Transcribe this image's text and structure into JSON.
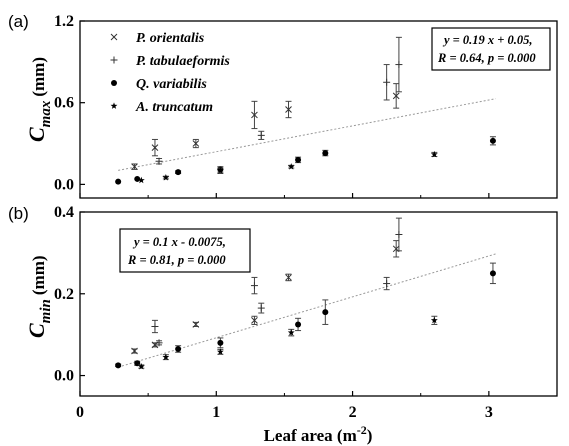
{
  "chart_data": [
    {
      "panel_label": "(a)",
      "type": "scatter",
      "ylabel": "C",
      "ylabel_sub": "max",
      "ylabel_unit": "(mm)",
      "ylim": [
        -0.1,
        1.2
      ],
      "yticks": [
        0.0,
        0.6,
        1.2
      ],
      "ytick_labels": [
        "0.0",
        "0.6",
        "1.2"
      ],
      "legend": [
        "P. orientalis",
        "P. tabulaeformis",
        "Q. variabilis",
        "A. truncatum"
      ],
      "equation_lines": [
        "y = 0.19 x + 0.05,",
        "R = 0.64, p = 0.000"
      ],
      "fit": {
        "slope": 0.19,
        "intercept": 0.05,
        "x_range": [
          0.28,
          3.05
        ]
      },
      "series": [
        {
          "name": "P. orientalis",
          "marker": "x",
          "points": [
            {
              "x": 0.4,
              "y": 0.13,
              "err": 0.02
            },
            {
              "x": 0.55,
              "y": 0.27,
              "err": 0.06
            },
            {
              "x": 0.85,
              "y": 0.3,
              "err": 0.03
            },
            {
              "x": 1.28,
              "y": 0.51,
              "err": 0.1
            },
            {
              "x": 1.53,
              "y": 0.55,
              "err": 0.06
            },
            {
              "x": 2.32,
              "y": 0.65,
              "err": 0.09
            }
          ]
        },
        {
          "name": "P. tabulaeformis",
          "marker": "+",
          "points": [
            {
              "x": 0.58,
              "y": 0.17,
              "err": 0.02
            },
            {
              "x": 1.33,
              "y": 0.36,
              "err": 0.03
            },
            {
              "x": 2.25,
              "y": 0.75,
              "err": 0.13
            },
            {
              "x": 2.34,
              "y": 0.88,
              "err": 0.2
            }
          ]
        },
        {
          "name": "Q. variabilis",
          "marker": "dot",
          "points": [
            {
              "x": 0.28,
              "y": 0.02,
              "err": 0.0
            },
            {
              "x": 0.42,
              "y": 0.04,
              "err": 0.0
            },
            {
              "x": 0.72,
              "y": 0.09,
              "err": 0.01
            },
            {
              "x": 1.03,
              "y": 0.11,
              "err": 0.02
            },
            {
              "x": 1.6,
              "y": 0.18,
              "err": 0.02
            },
            {
              "x": 1.8,
              "y": 0.23,
              "err": 0.02
            },
            {
              "x": 3.03,
              "y": 0.32,
              "err": 0.03
            }
          ]
        },
        {
          "name": "A. truncatum",
          "marker": "star",
          "points": [
            {
              "x": 0.45,
              "y": 0.03,
              "err": 0.0
            },
            {
              "x": 0.63,
              "y": 0.05,
              "err": 0.01
            },
            {
              "x": 1.03,
              "y": 0.1,
              "err": 0.02
            },
            {
              "x": 1.55,
              "y": 0.13,
              "err": 0.01
            },
            {
              "x": 2.6,
              "y": 0.22,
              "err": 0.015
            }
          ]
        }
      ]
    },
    {
      "panel_label": "(b)",
      "type": "scatter",
      "ylabel": "C",
      "ylabel_sub": "min",
      "ylabel_unit": "(mm)",
      "xlabel": "Leaf area (m",
      "xlabel_sup": "-2",
      "xlabel_end": ")",
      "xlim": [
        0,
        3.5
      ],
      "xticks": [
        0,
        1,
        2,
        3
      ],
      "xtick_labels": [
        "0",
        "1",
        "2",
        "3"
      ],
      "ylim": [
        -0.05,
        0.4
      ],
      "yticks": [
        0.0,
        0.2,
        0.4
      ],
      "ytick_labels": [
        "0.0",
        "0.2",
        "0.4"
      ],
      "equation_lines": [
        "y = 0.1 x - 0.0075,",
        "R = 0.81, p = 0.000"
      ],
      "fit": {
        "slope": 0.1,
        "intercept": -0.0075,
        "x_range": [
          0.28,
          3.05
        ]
      },
      "series": [
        {
          "name": "P. orientalis",
          "marker": "x",
          "points": [
            {
              "x": 0.4,
              "y": 0.06,
              "err": 0.005
            },
            {
              "x": 0.55,
              "y": 0.075,
              "err": 0.005
            },
            {
              "x": 0.85,
              "y": 0.125,
              "err": 0.005
            },
            {
              "x": 1.28,
              "y": 0.135,
              "err": 0.01
            },
            {
              "x": 1.53,
              "y": 0.24,
              "err": 0.008
            },
            {
              "x": 2.32,
              "y": 0.31,
              "err": 0.02
            }
          ]
        },
        {
          "name": "P. tabulaeformis",
          "marker": "+",
          "points": [
            {
              "x": 0.55,
              "y": 0.12,
              "err": 0.015
            },
            {
              "x": 0.58,
              "y": 0.08,
              "err": 0.005
            },
            {
              "x": 1.28,
              "y": 0.22,
              "err": 0.02
            },
            {
              "x": 1.33,
              "y": 0.165,
              "err": 0.012
            },
            {
              "x": 2.25,
              "y": 0.225,
              "err": 0.015
            },
            {
              "x": 2.34,
              "y": 0.345,
              "err": 0.04
            }
          ]
        },
        {
          "name": "Q. variabilis",
          "marker": "dot",
          "points": [
            {
              "x": 0.28,
              "y": 0.025,
              "err": 0.003
            },
            {
              "x": 0.42,
              "y": 0.03,
              "err": 0.005
            },
            {
              "x": 0.72,
              "y": 0.065,
              "err": 0.008
            },
            {
              "x": 1.03,
              "y": 0.08,
              "err": 0.012
            },
            {
              "x": 1.6,
              "y": 0.125,
              "err": 0.015
            },
            {
              "x": 1.8,
              "y": 0.155,
              "err": 0.03
            },
            {
              "x": 3.03,
              "y": 0.25,
              "err": 0.025
            }
          ]
        },
        {
          "name": "A. truncatum",
          "marker": "star",
          "points": [
            {
              "x": 0.45,
              "y": 0.022,
              "err": 0.004
            },
            {
              "x": 0.63,
              "y": 0.045,
              "err": 0.006
            },
            {
              "x": 1.03,
              "y": 0.058,
              "err": 0.006
            },
            {
              "x": 1.55,
              "y": 0.105,
              "err": 0.008
            },
            {
              "x": 2.6,
              "y": 0.135,
              "err": 0.01
            }
          ]
        }
      ]
    }
  ]
}
